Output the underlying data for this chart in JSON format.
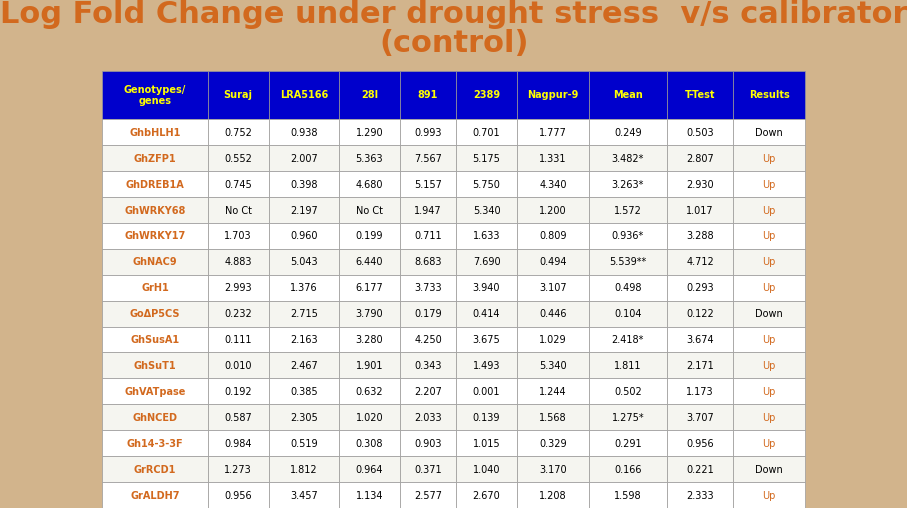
{
  "title_line1": "Log Fold Change under drought stress  v/s calibrator",
  "title_line2": "(control)",
  "title_color": "#D2691E",
  "title_fontsize": 22,
  "bg_color": "#D2B48C",
  "header_bg": "#0000CC",
  "header_text_color": "#FFFF00",
  "header_labels": [
    "Genotypes/\ngenes",
    "Suraj",
    "LRA5166",
    "28I",
    "891",
    "2389",
    "Nagpur-9",
    "Mean",
    "T-Test",
    "Results"
  ],
  "row_bg_even": "#FFFFFF",
  "row_bg_odd": "#F5F5F0",
  "gene_color": "#D2691E",
  "value_color": "#000000",
  "up_color": "#D2691E",
  "down_color": "#000000",
  "rows": [
    [
      "GhbHLH1",
      "0.752",
      "0.938",
      "1.290",
      "0.993",
      "0.701",
      "1.777",
      "0.249",
      "0.503",
      "Down"
    ],
    [
      "GhZFP1",
      "0.552",
      "2.007",
      "5.363",
      "7.567",
      "5.175",
      "1.331",
      "3.482*",
      "2.807",
      "Up"
    ],
    [
      "GhDREB1A",
      "0.745",
      "0.398",
      "4.680",
      "5.157",
      "5.750",
      "4.340",
      "3.263*",
      "2.930",
      "Up"
    ],
    [
      "GhWRKY68",
      "No Ct",
      "2.197",
      "No Ct",
      "1.947",
      "5.340",
      "1.200",
      "1.572",
      "1.017",
      "Up"
    ],
    [
      "GhWRKY17",
      "1.703",
      "0.960",
      "0.199",
      "0.711",
      "1.633",
      "0.809",
      "0.936*",
      "3.288",
      "Up"
    ],
    [
      "GhNAC9",
      "4.883",
      "5.043",
      "6.440",
      "8.683",
      "7.690",
      "0.494",
      "5.539**",
      "4.712",
      "Up"
    ],
    [
      "GrH1",
      "2.993",
      "1.376",
      "6.177",
      "3.733",
      "3.940",
      "3.107",
      "0.498",
      "0.293",
      "Up"
    ],
    [
      "GoΔP5CS",
      "0.232",
      "2.715",
      "3.790",
      "0.179",
      "0.414",
      "0.446",
      "0.104",
      "0.122",
      "Down"
    ],
    [
      "GhSusA1",
      "0.111",
      "2.163",
      "3.280",
      "4.250",
      "3.675",
      "1.029",
      "2.418*",
      "3.674",
      "Up"
    ],
    [
      "GhSuT1",
      "0.010",
      "2.467",
      "1.901",
      "0.343",
      "1.493",
      "5.340",
      "1.811",
      "2.171",
      "Up"
    ],
    [
      "GhVATpase",
      "0.192",
      "0.385",
      "0.632",
      "2.207",
      "0.001",
      "1.244",
      "0.502",
      "1.173",
      "Up"
    ],
    [
      "GhNCED",
      "0.587",
      "2.305",
      "1.020",
      "2.033",
      "0.139",
      "1.568",
      "1.275*",
      "3.707",
      "Up"
    ],
    [
      "Gh14-3-3F",
      "0.984",
      "0.519",
      "0.308",
      "0.903",
      "1.015",
      "0.329",
      "0.291",
      "0.956",
      "Up"
    ],
    [
      "GrRCD1",
      "1.273",
      "1.812",
      "0.964",
      "0.371",
      "1.040",
      "3.170",
      "0.166",
      "0.221",
      "Down"
    ],
    [
      "GrALDH7",
      "0.956",
      "3.457",
      "1.134",
      "2.577",
      "2.670",
      "1.208",
      "1.598",
      "2.333",
      "Up"
    ]
  ]
}
